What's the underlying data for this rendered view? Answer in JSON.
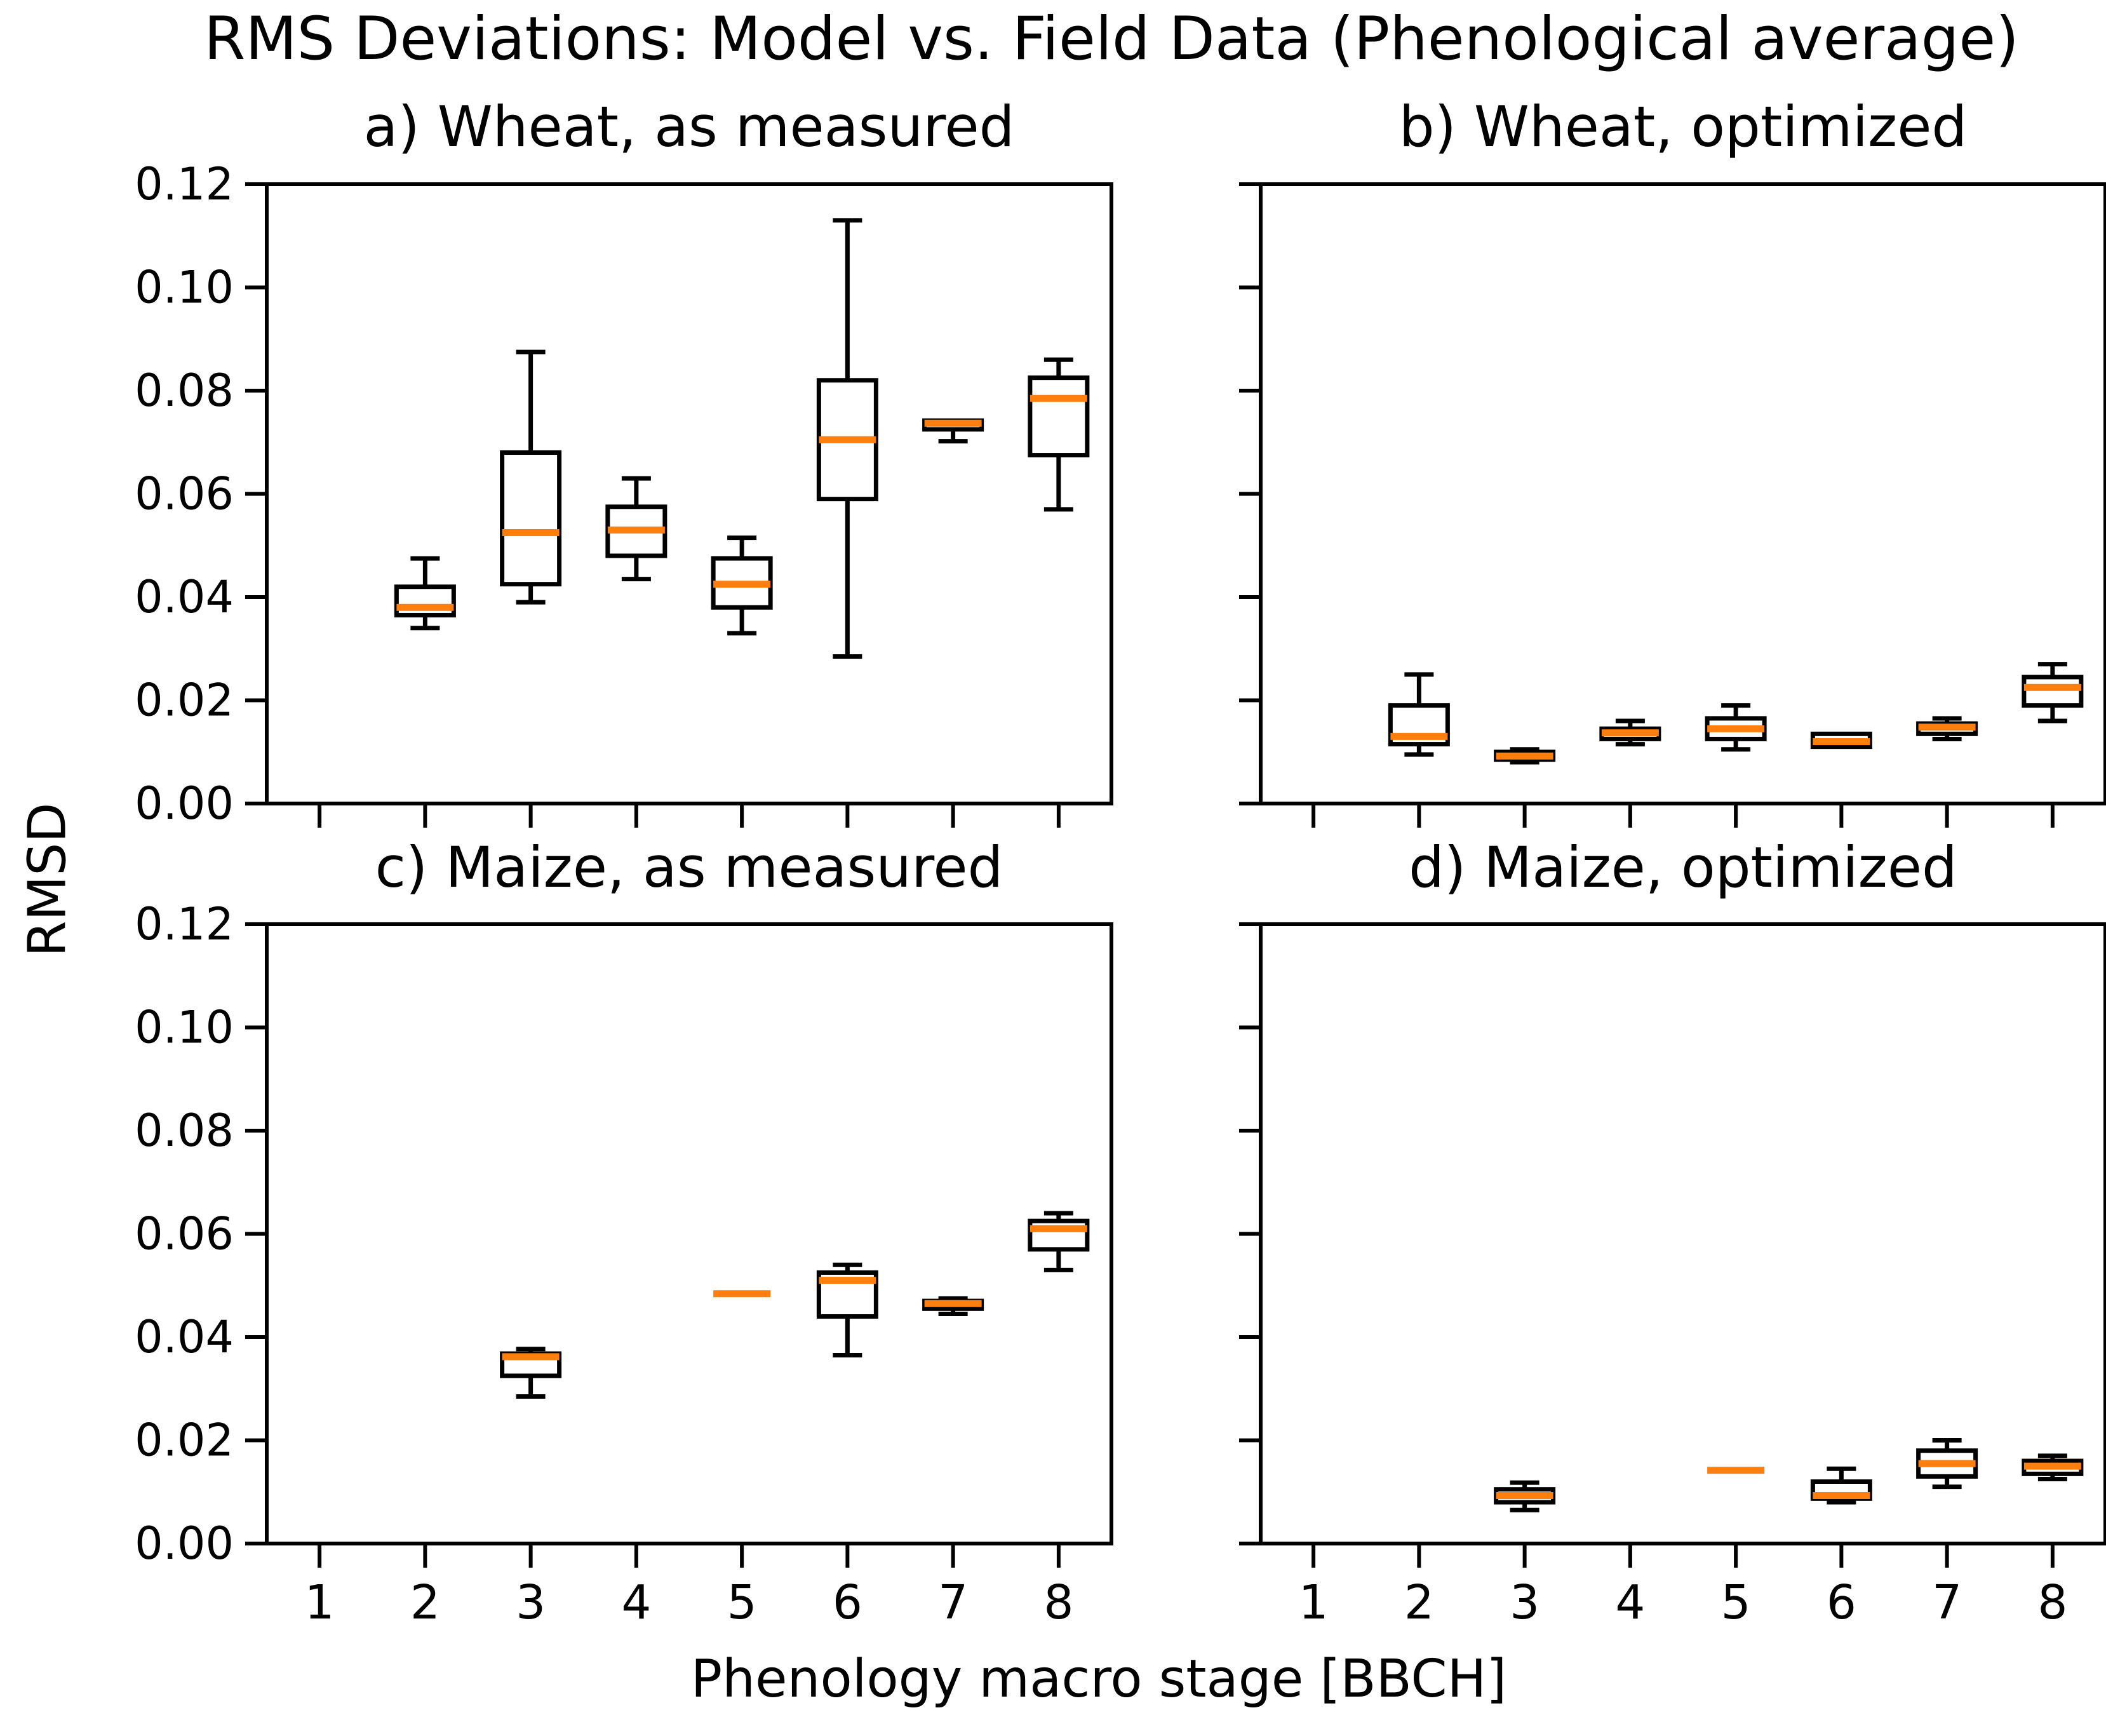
{
  "chart_data": {
    "type": "box",
    "title": "RMS Deviations: Model vs. Field Data (Phenological average)",
    "xlabel": "Phenology macro stage [BBCH]",
    "ylabel": "RMSD",
    "x_categories": [
      "1",
      "2",
      "3",
      "4",
      "5",
      "6",
      "7",
      "8"
    ],
    "xtick_labels": [
      "1",
      "2",
      "3",
      "4",
      "5",
      "6",
      "7",
      "8"
    ],
    "ylim": [
      0.0,
      0.12
    ],
    "yticks": [
      0.0,
      0.02,
      0.04,
      0.06,
      0.08,
      0.1,
      0.12
    ],
    "ytick_labels": [
      "0.00",
      "0.02",
      "0.04",
      "0.06",
      "0.08",
      "0.10",
      "0.12"
    ],
    "grid": false,
    "legend": "none",
    "median_color": "#ff7f0e",
    "box_edge_color": "#000000",
    "box_fill_color": "#ffffff",
    "layout": "2x2 grid, shared axes; y tick labels only on left column, x tick labels only on bottom row",
    "panels": [
      {
        "id": "a",
        "title": "a) Wheat, as measured",
        "row": 0,
        "col": 0,
        "show_ytick_labels": true,
        "show_xtick_labels": false,
        "boxes": [
          {
            "stage": 2,
            "whislo": 0.034,
            "q1": 0.0365,
            "med": 0.038,
            "q3": 0.042,
            "whishi": 0.0475
          },
          {
            "stage": 3,
            "whislo": 0.039,
            "q1": 0.0425,
            "med": 0.0525,
            "q3": 0.068,
            "whishi": 0.0875
          },
          {
            "stage": 4,
            "whislo": 0.0435,
            "q1": 0.048,
            "med": 0.053,
            "q3": 0.0575,
            "whishi": 0.063
          },
          {
            "stage": 5,
            "whislo": 0.033,
            "q1": 0.038,
            "med": 0.0425,
            "q3": 0.0475,
            "whishi": 0.0515
          },
          {
            "stage": 6,
            "whislo": 0.0285,
            "q1": 0.059,
            "med": 0.0705,
            "q3": 0.082,
            "whishi": 0.113
          },
          {
            "stage": 7,
            "whislo": 0.0702,
            "q1": 0.0725,
            "med": 0.0737,
            "q3": 0.0742,
            "whishi": 0.0742
          },
          {
            "stage": 8,
            "whislo": 0.057,
            "q1": 0.0675,
            "med": 0.0785,
            "q3": 0.0825,
            "whishi": 0.086
          }
        ]
      },
      {
        "id": "b",
        "title": "b) Wheat, optimized",
        "row": 0,
        "col": 1,
        "show_ytick_labels": false,
        "show_xtick_labels": false,
        "boxes": [
          {
            "stage": 2,
            "whislo": 0.0095,
            "q1": 0.0115,
            "med": 0.013,
            "q3": 0.019,
            "whishi": 0.025
          },
          {
            "stage": 3,
            "whislo": 0.008,
            "q1": 0.0085,
            "med": 0.0092,
            "q3": 0.01,
            "whishi": 0.0105
          },
          {
            "stage": 4,
            "whislo": 0.0115,
            "q1": 0.0125,
            "med": 0.0137,
            "q3": 0.0145,
            "whishi": 0.016
          },
          {
            "stage": 5,
            "whislo": 0.0105,
            "q1": 0.0125,
            "med": 0.0145,
            "q3": 0.0165,
            "whishi": 0.019
          },
          {
            "stage": 6,
            "whislo": 0.0107,
            "q1": 0.011,
            "med": 0.012,
            "q3": 0.0135,
            "whishi": 0.0137
          },
          {
            "stage": 7,
            "whislo": 0.0125,
            "q1": 0.0135,
            "med": 0.0148,
            "q3": 0.0155,
            "whishi": 0.0165
          },
          {
            "stage": 8,
            "whislo": 0.016,
            "q1": 0.019,
            "med": 0.0225,
            "q3": 0.0245,
            "whishi": 0.027
          }
        ]
      },
      {
        "id": "c",
        "title": "c) Maize, as measured",
        "row": 1,
        "col": 0,
        "show_ytick_labels": true,
        "show_xtick_labels": true,
        "boxes": [
          {
            "stage": 3,
            "whislo": 0.0285,
            "q1": 0.0325,
            "med": 0.0362,
            "q3": 0.0368,
            "whishi": 0.0377
          },
          {
            "stage": 5,
            "whislo": 0.0484,
            "q1": 0.0484,
            "med": 0.0484,
            "q3": 0.0484,
            "whishi": 0.0484
          },
          {
            "stage": 6,
            "whislo": 0.0365,
            "q1": 0.044,
            "med": 0.051,
            "q3": 0.0525,
            "whishi": 0.054
          },
          {
            "stage": 7,
            "whislo": 0.0445,
            "q1": 0.0455,
            "med": 0.0465,
            "q3": 0.047,
            "whishi": 0.0475
          },
          {
            "stage": 8,
            "whislo": 0.053,
            "q1": 0.057,
            "med": 0.061,
            "q3": 0.0625,
            "whishi": 0.064
          }
        ]
      },
      {
        "id": "d",
        "title": "d) Maize, optimized",
        "row": 1,
        "col": 1,
        "show_ytick_labels": false,
        "show_xtick_labels": true,
        "boxes": [
          {
            "stage": 3,
            "whislo": 0.0065,
            "q1": 0.008,
            "med": 0.0093,
            "q3": 0.0105,
            "whishi": 0.0118
          },
          {
            "stage": 5,
            "whislo": 0.0142,
            "q1": 0.0142,
            "med": 0.0142,
            "q3": 0.0142,
            "whishi": 0.0142
          },
          {
            "stage": 6,
            "whislo": 0.008,
            "q1": 0.0087,
            "med": 0.0093,
            "q3": 0.012,
            "whishi": 0.0145
          },
          {
            "stage": 7,
            "whislo": 0.011,
            "q1": 0.013,
            "med": 0.0155,
            "q3": 0.018,
            "whishi": 0.02
          },
          {
            "stage": 8,
            "whislo": 0.0125,
            "q1": 0.0135,
            "med": 0.015,
            "q3": 0.016,
            "whishi": 0.017
          }
        ]
      }
    ]
  }
}
